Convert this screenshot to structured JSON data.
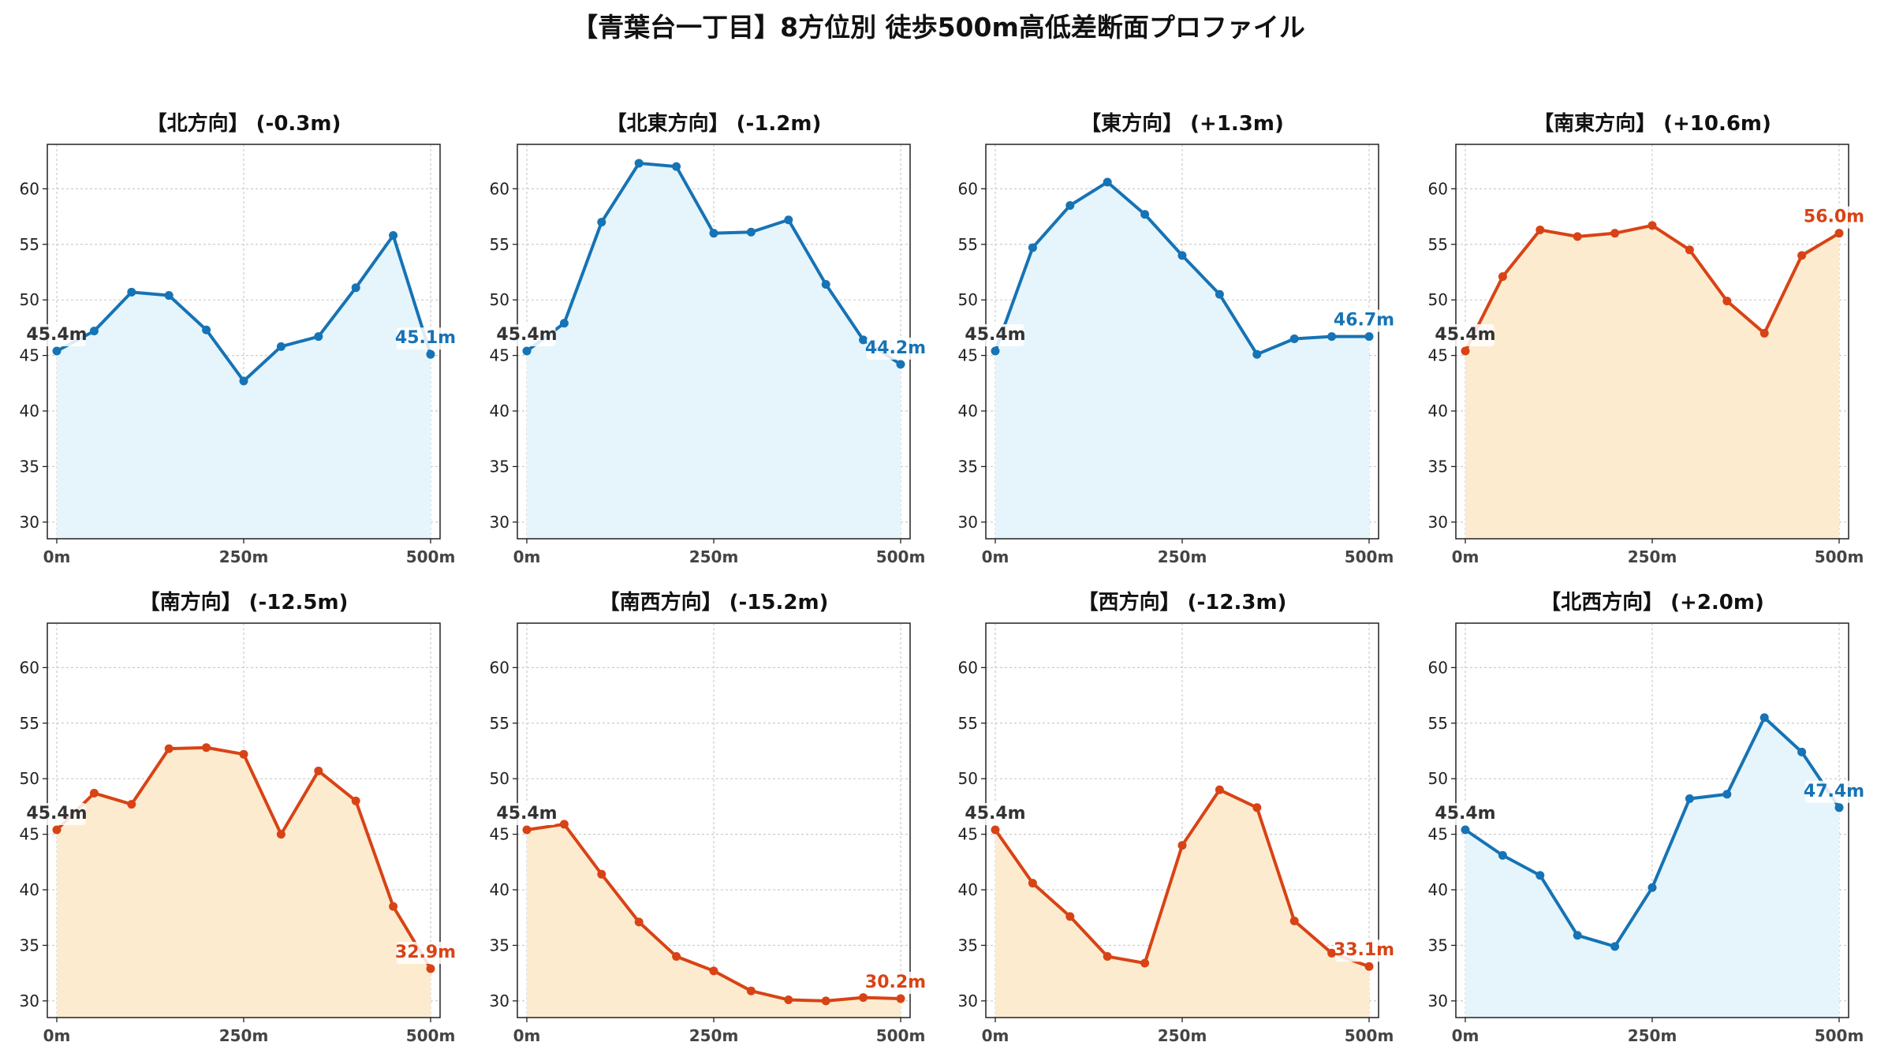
{
  "title": "【青葉台一丁目】8方位別 徒歩500m高低差断面プロファイル",
  "colors": {
    "up_line": "#1673b5",
    "up_fill": "#e6f5fb",
    "down_line": "#d84315",
    "down_fill": "#fdebd0",
    "start_label": "#333333",
    "grid": "#cccccc",
    "axis": "#222222"
  },
  "chart_data": [
    {
      "type": "area",
      "title": "【北方向】 (-0.3m)",
      "trend": "up",
      "x": [
        0,
        50,
        100,
        150,
        200,
        250,
        300,
        350,
        400,
        450,
        500
      ],
      "values": [
        45.4,
        47.2,
        50.7,
        50.4,
        47.3,
        42.7,
        45.8,
        46.7,
        51.1,
        55.8,
        45.1
      ],
      "x_ticks": [
        "0m",
        "250m",
        "500m"
      ],
      "y_ticks": [
        "30",
        "35",
        "40",
        "45",
        "50",
        "55",
        "60"
      ],
      "ylim": [
        28.5,
        64
      ],
      "start_label": "45.4m",
      "end_label": "45.1m",
      "grid": true
    },
    {
      "type": "area",
      "title": "【北東方向】 (-1.2m)",
      "trend": "up",
      "x": [
        0,
        50,
        100,
        150,
        200,
        250,
        300,
        350,
        400,
        450,
        500
      ],
      "values": [
        45.4,
        47.9,
        57.0,
        62.3,
        62.0,
        56.0,
        56.1,
        57.2,
        51.4,
        46.4,
        44.2
      ],
      "x_ticks": [
        "0m",
        "250m",
        "500m"
      ],
      "y_ticks": [
        "30",
        "35",
        "40",
        "45",
        "50",
        "55",
        "60"
      ],
      "ylim": [
        28.5,
        64
      ],
      "start_label": "45.4m",
      "end_label": "44.2m",
      "grid": true
    },
    {
      "type": "area",
      "title": "【東方向】 (+1.3m)",
      "trend": "up",
      "x": [
        0,
        50,
        100,
        150,
        200,
        250,
        300,
        350,
        400,
        450,
        500
      ],
      "values": [
        45.4,
        54.7,
        58.5,
        60.6,
        57.7,
        54.0,
        50.5,
        45.1,
        46.5,
        46.7,
        46.7
      ],
      "x_ticks": [
        "0m",
        "250m",
        "500m"
      ],
      "y_ticks": [
        "30",
        "35",
        "40",
        "45",
        "50",
        "55",
        "60"
      ],
      "ylim": [
        28.5,
        64
      ],
      "start_label": "45.4m",
      "end_label": "46.7m",
      "grid": true
    },
    {
      "type": "area",
      "title": "【南東方向】 (+10.6m)",
      "trend": "down",
      "x": [
        0,
        50,
        100,
        150,
        200,
        250,
        300,
        350,
        400,
        450,
        500
      ],
      "values": [
        45.4,
        52.1,
        56.3,
        55.7,
        56.0,
        56.7,
        54.5,
        49.9,
        47.0,
        54.0,
        56.0
      ],
      "x_ticks": [
        "0m",
        "250m",
        "500m"
      ],
      "y_ticks": [
        "30",
        "35",
        "40",
        "45",
        "50",
        "55",
        "60"
      ],
      "ylim": [
        28.5,
        64
      ],
      "start_label": "45.4m",
      "end_label": "56.0m",
      "grid": true
    },
    {
      "type": "area",
      "title": "【南方向】 (-12.5m)",
      "trend": "down",
      "x": [
        0,
        50,
        100,
        150,
        200,
        250,
        300,
        350,
        400,
        450,
        500
      ],
      "values": [
        45.4,
        48.7,
        47.7,
        52.7,
        52.8,
        52.2,
        45.0,
        50.7,
        48.0,
        38.5,
        32.9
      ],
      "x_ticks": [
        "0m",
        "250m",
        "500m"
      ],
      "y_ticks": [
        "30",
        "35",
        "40",
        "45",
        "50",
        "55",
        "60"
      ],
      "ylim": [
        28.5,
        64
      ],
      "start_label": "45.4m",
      "end_label": "32.9m",
      "grid": true
    },
    {
      "type": "area",
      "title": "【南西方向】 (-15.2m)",
      "trend": "down",
      "x": [
        0,
        50,
        100,
        150,
        200,
        250,
        300,
        350,
        400,
        450,
        500
      ],
      "values": [
        45.4,
        45.9,
        41.4,
        37.1,
        34.0,
        32.7,
        30.9,
        30.1,
        30.0,
        30.3,
        30.2
      ],
      "x_ticks": [
        "0m",
        "250m",
        "500m"
      ],
      "y_ticks": [
        "30",
        "35",
        "40",
        "45",
        "50",
        "55",
        "60"
      ],
      "ylim": [
        28.5,
        64
      ],
      "start_label": "45.4m",
      "end_label": "30.2m",
      "grid": true
    },
    {
      "type": "area",
      "title": "【西方向】 (-12.3m)",
      "trend": "down",
      "x": [
        0,
        50,
        100,
        150,
        200,
        250,
        300,
        350,
        400,
        450,
        500
      ],
      "values": [
        45.4,
        40.6,
        37.6,
        34.0,
        33.4,
        44.0,
        49.0,
        47.4,
        37.2,
        34.3,
        33.1
      ],
      "x_ticks": [
        "0m",
        "250m",
        "500m"
      ],
      "y_ticks": [
        "30",
        "35",
        "40",
        "45",
        "50",
        "55",
        "60"
      ],
      "ylim": [
        28.5,
        64
      ],
      "start_label": "45.4m",
      "end_label": "33.1m",
      "grid": true
    },
    {
      "type": "area",
      "title": "【北西方向】 (+2.0m)",
      "trend": "up",
      "x": [
        0,
        50,
        100,
        150,
        200,
        250,
        300,
        350,
        400,
        450,
        500
      ],
      "values": [
        45.4,
        43.1,
        41.3,
        35.9,
        34.9,
        40.2,
        48.2,
        48.6,
        55.5,
        52.4,
        47.4
      ],
      "x_ticks": [
        "0m",
        "250m",
        "500m"
      ],
      "y_ticks": [
        "30",
        "35",
        "40",
        "45",
        "50",
        "55",
        "60"
      ],
      "ylim": [
        28.5,
        64
      ],
      "start_label": "45.4m",
      "end_label": "47.4m",
      "grid": true
    }
  ]
}
